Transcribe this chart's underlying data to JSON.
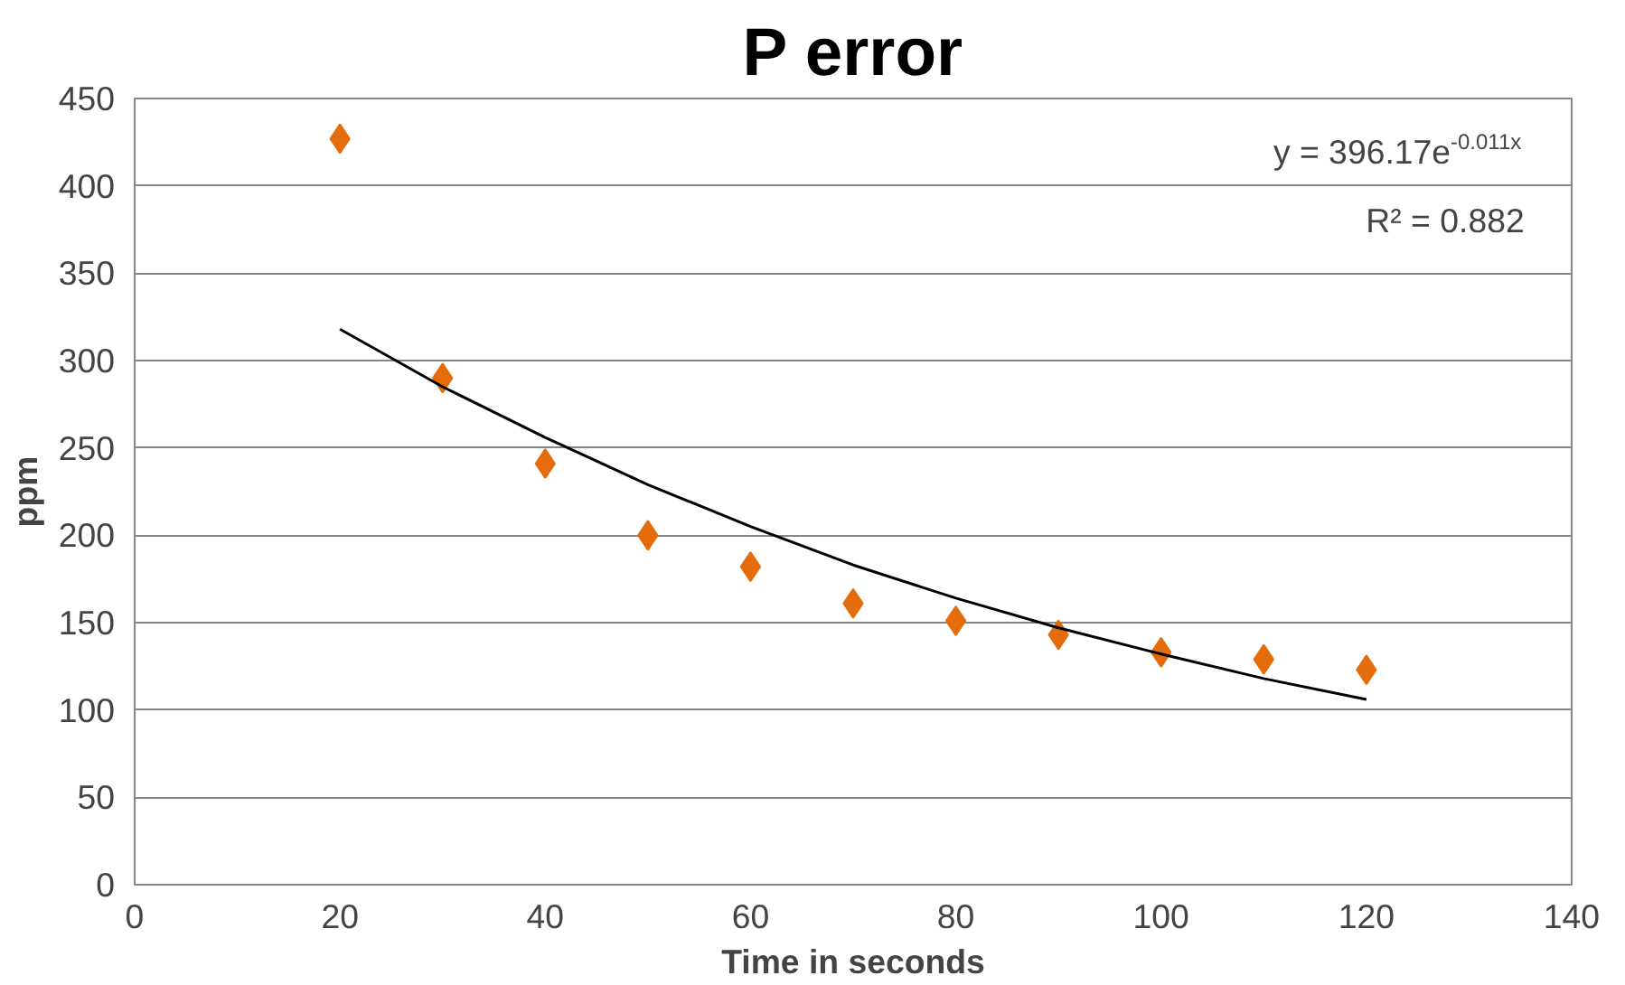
{
  "chart_data": {
    "type": "scatter",
    "title": "P error",
    "xlabel": "Time in seconds",
    "ylabel": "ppm",
    "x": [
      20,
      30,
      40,
      50,
      60,
      70,
      80,
      90,
      100,
      110,
      120
    ],
    "series": [
      {
        "color": "#e46c0a",
        "marker": "diamond",
        "values": [
          427,
          290,
          241,
          200,
          182,
          161,
          151,
          143,
          133,
          129,
          123
        ]
      },
      {
        "type": "line",
        "color": "#000000",
        "line_style": "solid",
        "x": [
          20,
          30,
          40,
          50,
          60,
          70,
          80,
          90,
          100,
          110,
          120
        ],
        "values": [
          318,
          285,
          256,
          229,
          205,
          183,
          164,
          147,
          132,
          118,
          106
        ]
      }
    ],
    "annotations": [
      "y = 396.17e$^{-0.011x}$",
      "R² = 0.882"
    ],
    "xlim": [
      0,
      140
    ],
    "xticks": [
      0,
      20,
      40,
      60,
      80,
      100,
      120,
      140
    ],
    "ylim": [
      0,
      450
    ],
    "yticks": [
      0,
      50,
      100,
      150,
      200,
      250,
      300,
      350,
      400,
      450
    ],
    "grid": "y"
  }
}
